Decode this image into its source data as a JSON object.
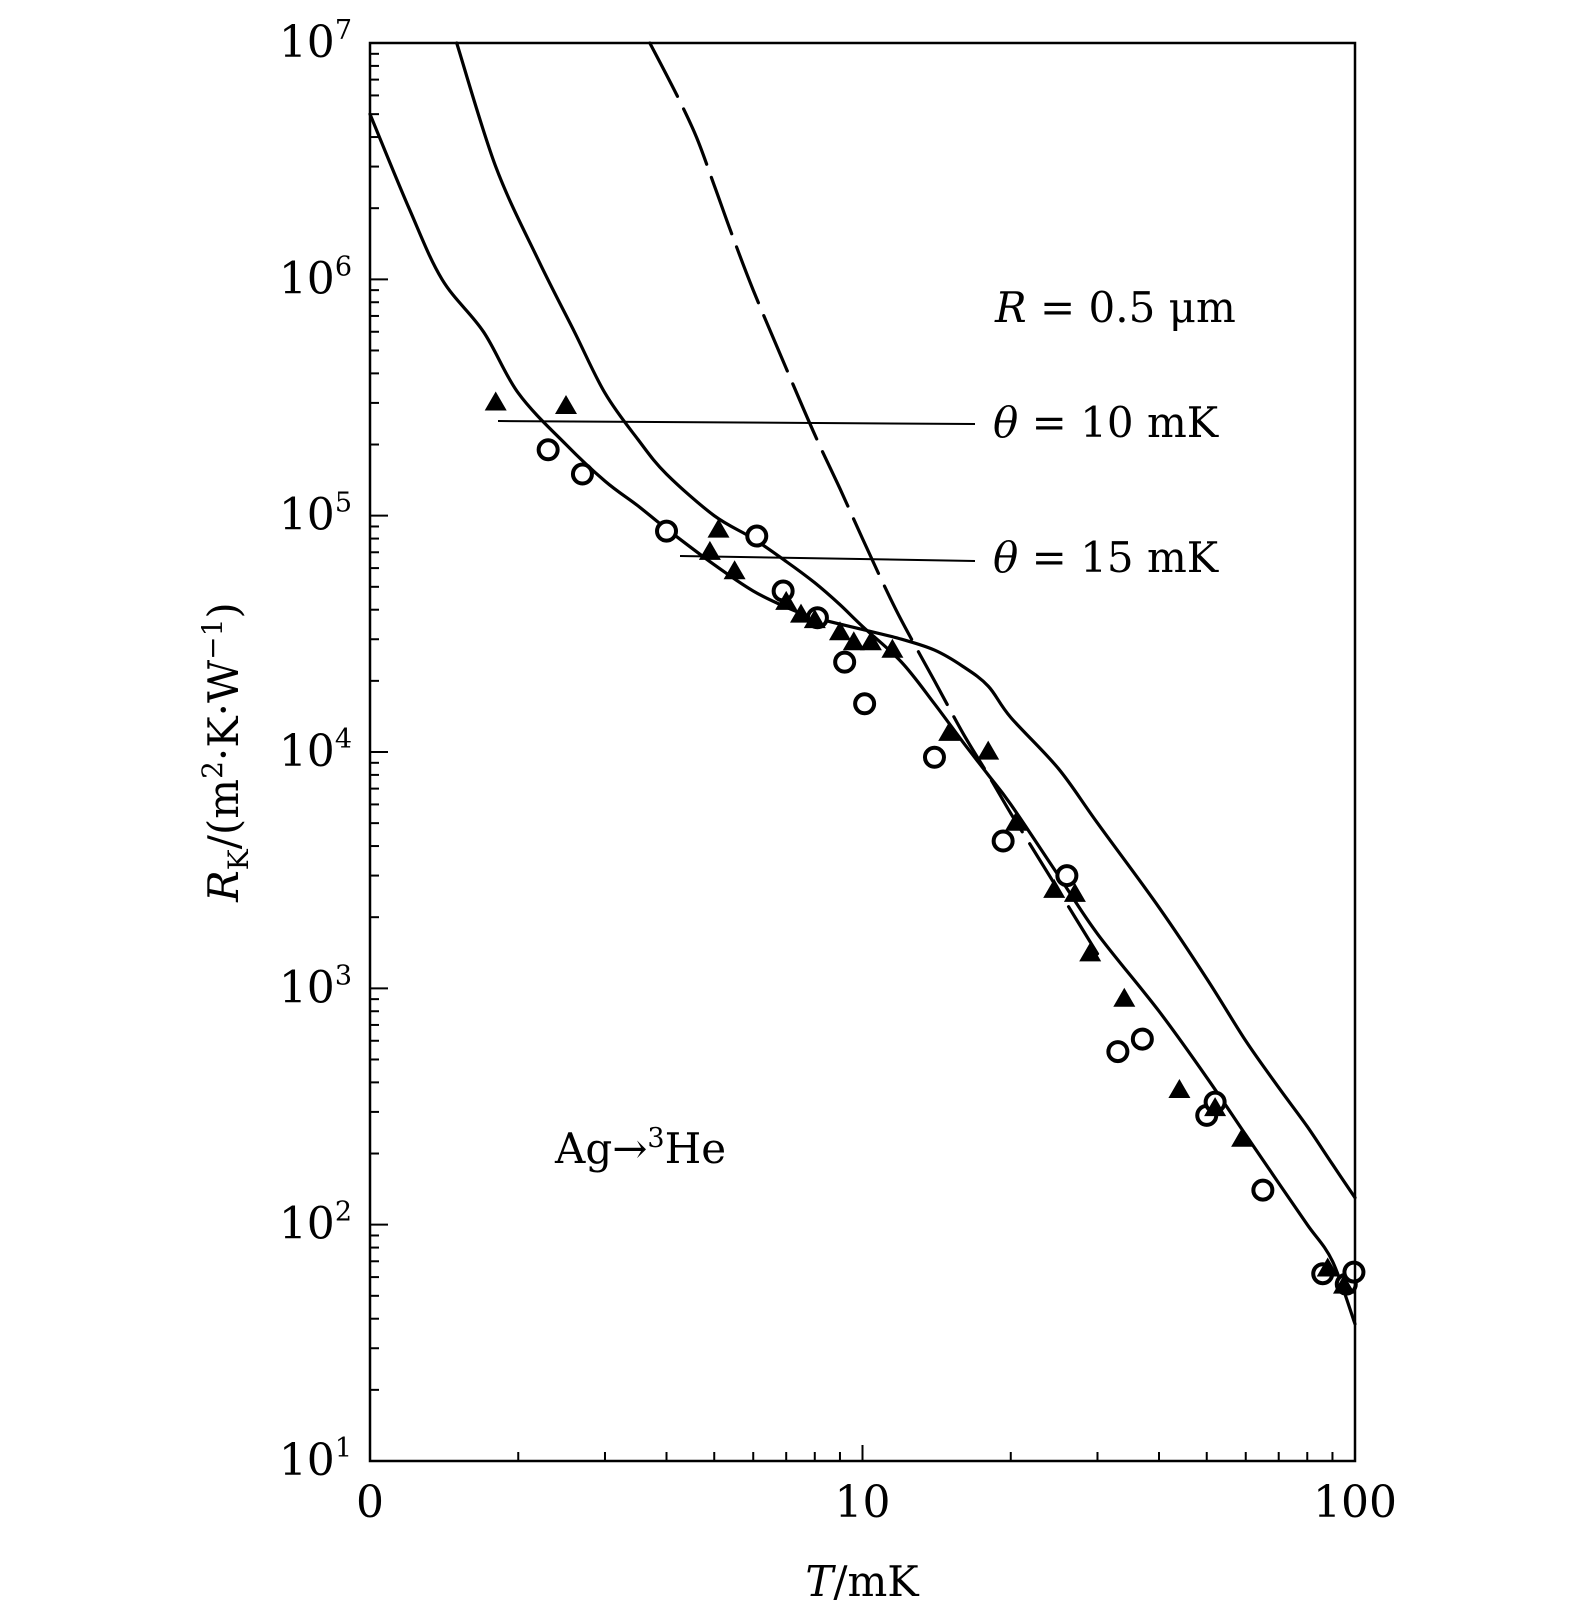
{
  "chart_data": {
    "type": "scatter",
    "title": "",
    "xlabel_main": "T",
    "xlabel_unit": "/mK",
    "ylabel_main": "R",
    "ylabel_sub": "K",
    "ylabel_unit_a": "/(m",
    "ylabel_unit_sup1": "2",
    "ylabel_unit_b": "·K·W",
    "ylabel_unit_sup2": "−1",
    "ylabel_unit_c": ")",
    "x_scale": "log",
    "y_scale": "log",
    "xlim": [
      1,
      100
    ],
    "ylim": [
      10,
      10000000
    ],
    "x_tick_labels": [
      "0",
      "10",
      "100"
    ],
    "y_tick_exponents": [
      "1",
      "2",
      "3",
      "4",
      "5",
      "6",
      "7"
    ],
    "y_tick_base": "10",
    "annotations": {
      "radius_label": "R",
      "radius_value": " = 0.5 μm",
      "theta_symbol": "θ",
      "theta1_value": " = 10 mK",
      "theta2_value": " = 15 mK",
      "system_a": "Ag",
      "system_arrow": "→",
      "system_sup": "3",
      "system_b": "He"
    },
    "series": [
      {
        "marker": "circle",
        "points": [
          [
            2.3,
            190000
          ],
          [
            2.7,
            150000
          ],
          [
            4.0,
            86000
          ],
          [
            6.1,
            82000
          ],
          [
            6.9,
            48000
          ],
          [
            8.1,
            37000
          ],
          [
            9.2,
            24000
          ],
          [
            10.1,
            16000
          ],
          [
            14.0,
            9500
          ],
          [
            19.3,
            4200
          ],
          [
            26.0,
            3000
          ],
          [
            33.0,
            540
          ],
          [
            37.0,
            610
          ],
          [
            50.0,
            290
          ],
          [
            52.0,
            330
          ],
          [
            65.0,
            140
          ],
          [
            86.0,
            62
          ],
          [
            96.0,
            56
          ],
          [
            99.5,
            63
          ]
        ]
      },
      {
        "marker": "triangle",
        "points": [
          [
            1.8,
            300000
          ],
          [
            2.5,
            290000
          ],
          [
            4.9,
            70000
          ],
          [
            5.1,
            87000
          ],
          [
            5.5,
            58000
          ],
          [
            7.0,
            43000
          ],
          [
            7.5,
            38000
          ],
          [
            8.0,
            36000
          ],
          [
            9.0,
            32000
          ],
          [
            9.6,
            29000
          ],
          [
            10.4,
            29000
          ],
          [
            11.5,
            27000
          ],
          [
            15.0,
            12000
          ],
          [
            18.0,
            10000
          ],
          [
            20.5,
            5000
          ],
          [
            24.5,
            2600
          ],
          [
            27.0,
            2500
          ],
          [
            29.0,
            1400
          ],
          [
            34.0,
            900
          ],
          [
            44.0,
            370
          ],
          [
            52.0,
            310
          ],
          [
            59.0,
            230
          ],
          [
            88.0,
            65
          ],
          [
            95.0,
            55
          ]
        ]
      }
    ],
    "curves": [
      {
        "style": "solid",
        "points": [
          [
            1.0,
            5000000
          ],
          [
            1.2,
            2000000
          ],
          [
            1.4,
            1000000
          ],
          [
            1.7,
            600000
          ],
          [
            2.0,
            330000
          ],
          [
            2.5,
            200000
          ],
          [
            3.0,
            140000
          ],
          [
            3.5,
            110000
          ],
          [
            4.0,
            88000
          ],
          [
            5.0,
            62000
          ],
          [
            6.0,
            48000
          ],
          [
            7.0,
            41000
          ],
          [
            8.0,
            37000
          ],
          [
            10.0,
            33000
          ],
          [
            12.0,
            30000
          ],
          [
            14.0,
            27000
          ],
          [
            16.0,
            23000
          ],
          [
            18.0,
            19000
          ],
          [
            20.0,
            14000
          ],
          [
            25.0,
            8500
          ],
          [
            30.0,
            5000
          ],
          [
            40.0,
            2200
          ],
          [
            50.0,
            1100
          ],
          [
            60.0,
            600
          ],
          [
            70.0,
            380
          ],
          [
            80.0,
            260
          ],
          [
            90.0,
            180
          ],
          [
            100.0,
            130
          ]
        ]
      },
      {
        "style": "solid",
        "points": [
          [
            1.5,
            10000000
          ],
          [
            1.8,
            3000000
          ],
          [
            2.2,
            1200000
          ],
          [
            2.6,
            600000
          ],
          [
            3.0,
            330000
          ],
          [
            3.5,
            210000
          ],
          [
            4.0,
            150000
          ],
          [
            5.0,
            100000
          ],
          [
            6.0,
            80000
          ],
          [
            7.0,
            64000
          ],
          [
            8.0,
            52000
          ],
          [
            9.0,
            42000
          ],
          [
            10.0,
            34000
          ],
          [
            12.0,
            24000
          ],
          [
            14.0,
            16000
          ],
          [
            16.0,
            11000
          ],
          [
            18.0,
            8000
          ],
          [
            20.0,
            6000
          ],
          [
            25.0,
            3000
          ],
          [
            30.0,
            1700
          ],
          [
            40.0,
            800
          ],
          [
            50.0,
            420
          ],
          [
            60.0,
            240
          ],
          [
            70.0,
            150
          ],
          [
            80.0,
            100
          ],
          [
            90.0,
            70
          ],
          [
            100.0,
            38
          ]
        ]
      },
      {
        "style": "dashed",
        "points": [
          [
            3.7,
            10000000
          ],
          [
            4.2,
            6000000
          ],
          [
            4.6,
            4000000
          ],
          [
            5.0,
            2500000
          ],
          [
            5.4,
            1600000
          ],
          [
            6.0,
            900000
          ],
          [
            7.0,
            420000
          ],
          [
            8.0,
            220000
          ],
          [
            9.0,
            130000
          ],
          [
            10.0,
            80000
          ],
          [
            11.0,
            52000
          ],
          [
            12.0,
            36000
          ],
          [
            14.0,
            20000
          ],
          [
            16.0,
            12000
          ],
          [
            18.0,
            8000
          ],
          [
            20.0,
            5500
          ],
          [
            22.0,
            4000
          ],
          [
            25.0,
            2600
          ],
          [
            30.0,
            1400
          ]
        ]
      }
    ]
  }
}
